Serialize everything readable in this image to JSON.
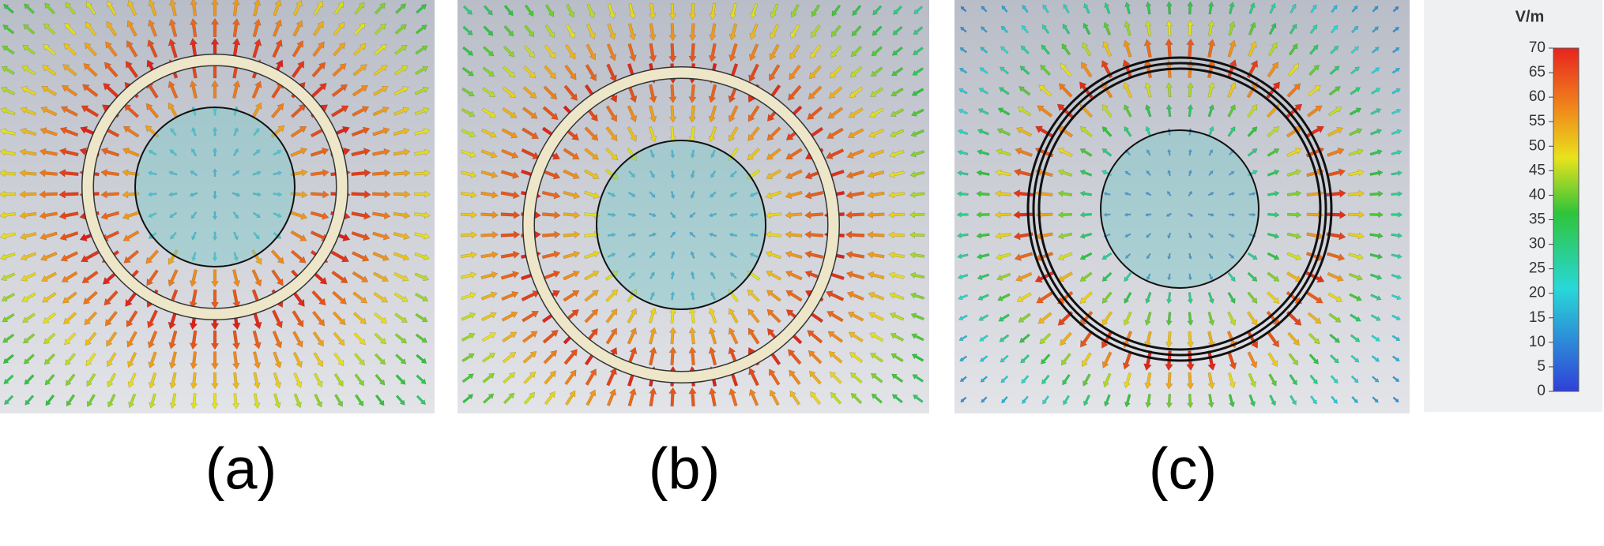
{
  "panels": [
    {
      "label": "(a)"
    },
    {
      "label": "(b)"
    },
    {
      "label": "(c)"
    }
  ],
  "colorbar": {
    "unit": "V/m",
    "ticks": [
      0,
      5,
      10,
      15,
      20,
      25,
      30,
      35,
      40,
      45,
      50,
      55,
      60,
      65,
      70
    ]
  }
}
